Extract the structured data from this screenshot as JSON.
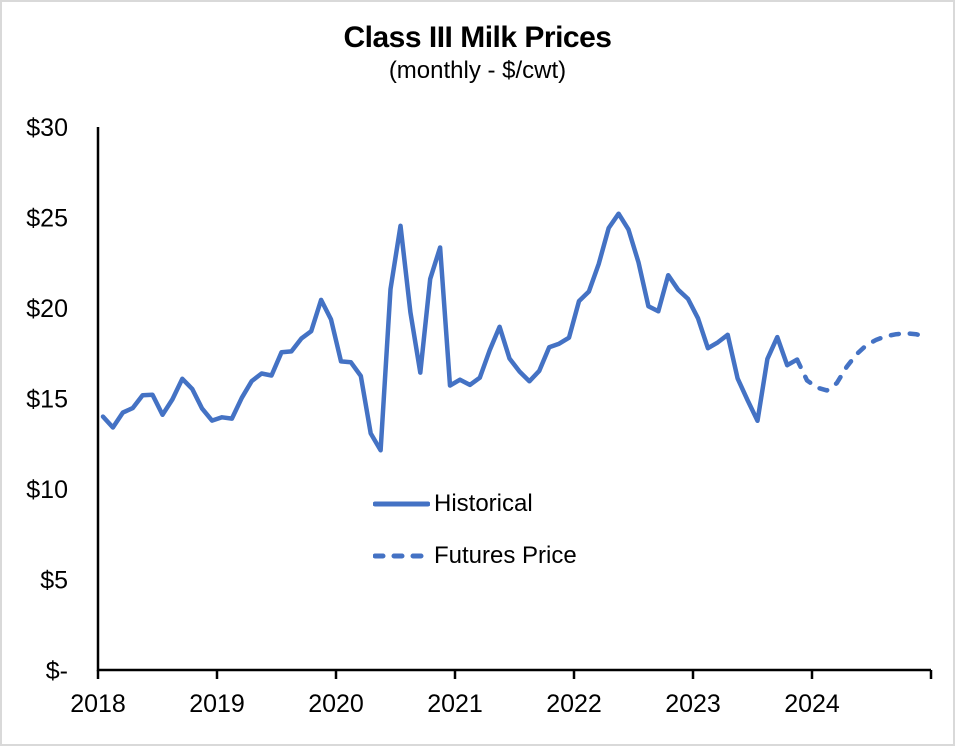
{
  "page": {
    "background": "#ffffff",
    "border_color": "#d9d9d9"
  },
  "header": {
    "title": "Class III Milk Prices",
    "subtitle": "(monthly - $/cwt)"
  },
  "legend": {
    "items": [
      {
        "label": "Historical",
        "style": "solid"
      },
      {
        "label": "Futures Price",
        "style": "dashed"
      }
    ]
  },
  "chart_data": {
    "type": "line",
    "title": "Class III Milk Prices",
    "subtitle": "(monthly - $/cwt)",
    "y_unit": "$/cwt",
    "ylim": [
      0,
      30
    ],
    "grid": false,
    "legend_position": "inside-lower-center",
    "line_color": "#4472C4",
    "axis_color": "#000000",
    "x_tick_labels": [
      "2018",
      "2019",
      "2020",
      "2021",
      "2022",
      "2023",
      "2024"
    ],
    "y_ticks": [
      {
        "label": "$30",
        "value": 30
      },
      {
        "label": "$25",
        "value": 25
      },
      {
        "label": "$20",
        "value": 20
      },
      {
        "label": "$15",
        "value": 15
      },
      {
        "label": "$10",
        "value": 10
      },
      {
        "label": "$5",
        "value": 5
      },
      {
        "label": "$-",
        "value": 0
      }
    ],
    "x_range_months": 84,
    "series": [
      {
        "name": "Historical",
        "style": "solid",
        "start": {
          "year": 2018,
          "month": 1
        },
        "values": [
          14.0,
          13.4,
          14.22,
          14.47,
          15.18,
          15.21,
          14.1,
          14.95,
          16.09,
          15.53,
          14.44,
          13.78,
          13.96,
          13.89,
          15.04,
          15.96,
          16.38,
          16.27,
          17.55,
          17.6,
          18.31,
          18.72,
          20.45,
          19.37,
          17.05,
          17.0,
          16.25,
          13.07,
          12.14,
          21.04,
          24.54,
          19.77,
          16.43,
          21.61,
          23.34,
          15.72,
          16.04,
          15.75,
          16.15,
          17.67,
          18.96,
          17.21,
          16.49,
          15.95,
          16.53,
          17.83,
          18.03,
          18.36,
          20.38,
          20.91,
          22.45,
          24.42,
          25.21,
          24.33,
          22.52,
          20.1,
          19.82,
          21.81,
          21.01,
          20.5,
          19.43,
          17.78,
          18.1,
          18.52,
          16.11,
          14.91,
          13.77,
          17.19,
          18.39,
          16.84,
          17.15
        ]
      },
      {
        "name": "Futures Price",
        "style": "dashed",
        "start": {
          "year": 2023,
          "month": 11
        },
        "values": [
          17.15,
          16.0,
          15.6,
          15.45,
          15.85,
          16.75,
          17.45,
          17.95,
          18.25,
          18.45,
          18.55,
          18.6,
          18.55,
          18.4
        ]
      }
    ]
  }
}
